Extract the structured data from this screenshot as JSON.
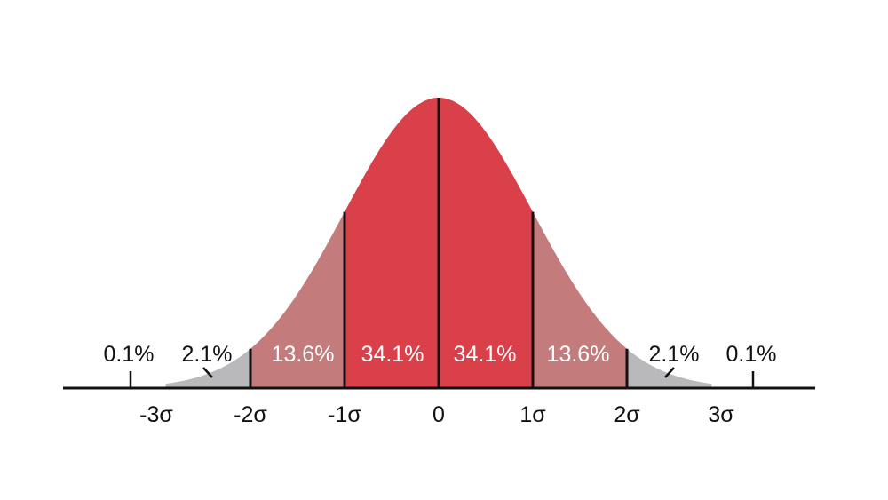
{
  "chart_data": {
    "type": "area",
    "title": "",
    "xlabel": "",
    "ylabel": "",
    "x_ticks": [
      "-3σ",
      "-2σ",
      "-1σ",
      "0",
      "1σ",
      "2σ",
      "3σ"
    ],
    "x_tick_values": [
      -3,
      -2,
      -1,
      0,
      1,
      2,
      3
    ],
    "xlim": [
      -4,
      4
    ],
    "grid": false,
    "series": [
      {
        "region": [
          -4,
          -3
        ],
        "value_label": "0.1%",
        "value": 0.1
      },
      {
        "region": [
          -3,
          -2
        ],
        "value_label": "2.1%",
        "value": 2.1
      },
      {
        "region": [
          -2,
          -1
        ],
        "value_label": "13.6%",
        "value": 13.6
      },
      {
        "region": [
          -1,
          0
        ],
        "value_label": "34.1%",
        "value": 34.1
      },
      {
        "region": [
          0,
          1
        ],
        "value_label": "34.1%",
        "value": 34.1
      },
      {
        "region": [
          1,
          2
        ],
        "value_label": "13.6%",
        "value": 13.6
      },
      {
        "region": [
          2,
          3
        ],
        "value_label": "2.1%",
        "value": 2.1
      },
      {
        "region": [
          3,
          4
        ],
        "value_label": "0.1%",
        "value": 0.1
      }
    ],
    "colors": {
      "inner": "#d9404a",
      "middle": "#c47b7c",
      "tail": "#b9b9bb",
      "lines": "#111111",
      "inner_label": "#ffffff",
      "outer_label": "#111111"
    }
  }
}
